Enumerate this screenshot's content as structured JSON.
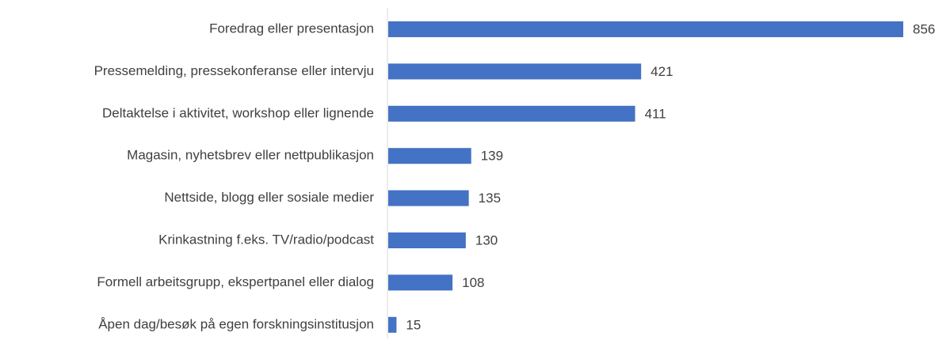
{
  "chart_data": {
    "type": "bar",
    "orientation": "horizontal",
    "categories": [
      "Foredrag eller presentasjon",
      "Pressemelding, pressekonferanse eller intervju",
      "Deltaktelse i aktivitet, workshop eller lignende",
      "Magasin, nyhetsbrev eller nettpublikasjon",
      "Nettside, blogg eller sosiale medier",
      "Krinkastning f.eks. TV/radio/podcast",
      "Formell arbeitsgrupp, ekspertpanel eller dialog",
      "Åpen dag/besøk på egen forskningsinstitusjon"
    ],
    "values": [
      856,
      421,
      411,
      139,
      135,
      130,
      108,
      15
    ],
    "color": "#4472c4"
  }
}
